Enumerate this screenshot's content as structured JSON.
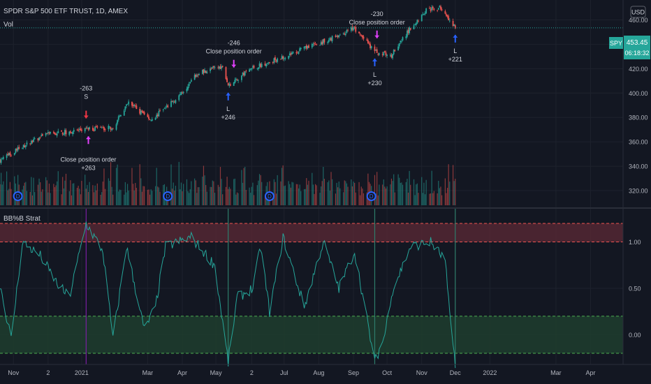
{
  "header": {
    "symbol_title": "SPDR S&P 500 ETF TRUST, 1D, AMEX",
    "volume_label": "Vol",
    "currency": "USD"
  },
  "indicator": {
    "title": "BB%B Strat"
  },
  "price_badge": {
    "ticker": "SPY",
    "price": "453.45",
    "countdown": "06:18:32"
  },
  "colors": {
    "background": "#131722",
    "up": "#26a69a",
    "down": "#ef5350",
    "grid": "#1e222d",
    "text": "#b2b5be",
    "long_arrow": "#2962ff",
    "short_arrow": "#f23645",
    "close_arrow": "#e040fb",
    "upper_band": "#5c2a35",
    "lower_band": "#1f3d2e",
    "bb_line": "#26a69a",
    "badge": "#26a69a"
  },
  "axes": {
    "price_ticks": [
      "460.00",
      "440.00",
      "420.00",
      "400.00",
      "380.00",
      "360.00",
      "340.00",
      "320.00"
    ],
    "indicator_ticks": [
      "1.00",
      "0.50",
      "0.00"
    ],
    "time_ticks": [
      "Nov",
      "2",
      "2021",
      "Mar",
      "Apr",
      "May",
      "2",
      "Jul",
      "Aug",
      "Sep",
      "Oct",
      "Nov",
      "Dec",
      "2022",
      "Mar",
      "Apr"
    ]
  },
  "chart_data": [
    {
      "type": "candlestick",
      "title": "SPDR S&P 500 ETF TRUST, 1D, AMEX",
      "ylim": [
        308,
        474
      ],
      "x_range": [
        "2020-10-20",
        "2022-04-30"
      ],
      "anchors": [
        {
          "x": "2020-10-20",
          "y": 345
        },
        {
          "x": "2020-11-09",
          "y": 356
        },
        {
          "x": "2020-12-01",
          "y": 366
        },
        {
          "x": "2021-01-04",
          "y": 370
        },
        {
          "x": "2021-01-29",
          "y": 372
        },
        {
          "x": "2021-02-12",
          "y": 392
        },
        {
          "x": "2021-03-04",
          "y": 378
        },
        {
          "x": "2021-03-26",
          "y": 395
        },
        {
          "x": "2021-04-16",
          "y": 417
        },
        {
          "x": "2021-05-07",
          "y": 422
        },
        {
          "x": "2021-05-12",
          "y": 406
        },
        {
          "x": "2021-06-01",
          "y": 420
        },
        {
          "x": "2021-07-01",
          "y": 430
        },
        {
          "x": "2021-08-02",
          "y": 441
        },
        {
          "x": "2021-09-02",
          "y": 453
        },
        {
          "x": "2021-09-20",
          "y": 434
        },
        {
          "x": "2021-09-28",
          "y": 432
        },
        {
          "x": "2021-10-04",
          "y": 430
        },
        {
          "x": "2021-10-21",
          "y": 452
        },
        {
          "x": "2021-11-05",
          "y": 468
        },
        {
          "x": "2021-11-18",
          "y": 470
        },
        {
          "x": "2021-11-26",
          "y": 458
        },
        {
          "x": "2021-11-30",
          "y": 455
        },
        {
          "x": "2021-12-01",
          "y": 453.45
        }
      ],
      "last_price": 453.45
    },
    {
      "type": "bar",
      "title": "Vol",
      "note": "volume histogram; red bars on down days, green on up days"
    },
    {
      "type": "line",
      "title": "BB%B Strat",
      "ylim": [
        -0.32,
        1.32
      ],
      "bands": {
        "upper": [
          1.0,
          1.2
        ],
        "lower": [
          -0.2,
          0.2
        ]
      },
      "anchors": [
        {
          "x": "2020-10-20",
          "y": 0.55
        },
        {
          "x": "2020-10-30",
          "y": -0.05
        },
        {
          "x": "2020-11-09",
          "y": 1.0
        },
        {
          "x": "2020-11-25",
          "y": 0.85
        },
        {
          "x": "2020-12-10",
          "y": 0.55
        },
        {
          "x": "2020-12-21",
          "y": 0.4
        },
        {
          "x": "2021-01-05",
          "y": 1.2
        },
        {
          "x": "2021-01-20",
          "y": 0.9
        },
        {
          "x": "2021-01-29",
          "y": -0.05
        },
        {
          "x": "2021-02-10",
          "y": 0.95
        },
        {
          "x": "2021-02-26",
          "y": 0.05
        },
        {
          "x": "2021-03-08",
          "y": 0.3
        },
        {
          "x": "2021-03-17",
          "y": 0.95
        },
        {
          "x": "2021-04-09",
          "y": 1.05
        },
        {
          "x": "2021-04-30",
          "y": 0.75
        },
        {
          "x": "2021-05-12",
          "y": -0.3
        },
        {
          "x": "2021-05-20",
          "y": 0.4
        },
        {
          "x": "2021-06-03",
          "y": 0.5
        },
        {
          "x": "2021-06-10",
          "y": 0.95
        },
        {
          "x": "2021-06-18",
          "y": 0.25
        },
        {
          "x": "2021-06-30",
          "y": 1.05
        },
        {
          "x": "2021-07-19",
          "y": 0.3
        },
        {
          "x": "2021-08-05",
          "y": 1.0
        },
        {
          "x": "2021-08-19",
          "y": 0.5
        },
        {
          "x": "2021-09-02",
          "y": 0.9
        },
        {
          "x": "2021-09-20",
          "y": -0.3
        },
        {
          "x": "2021-09-29",
          "y": 0.0
        },
        {
          "x": "2021-10-05",
          "y": 0.45
        },
        {
          "x": "2021-10-22",
          "y": 0.95
        },
        {
          "x": "2021-11-09",
          "y": 1.0
        },
        {
          "x": "2021-11-22",
          "y": 0.8
        },
        {
          "x": "2021-11-26",
          "y": 0.2
        },
        {
          "x": "2021-12-01",
          "y": -0.3
        }
      ]
    }
  ],
  "signals": [
    {
      "kind": "short",
      "x": "2021-01-05",
      "price_text": "-263",
      "letter": "S",
      "lines": [
        "-263",
        "S"
      ]
    },
    {
      "kind": "close_up",
      "x": "2021-01-07",
      "lines": [
        "Close position order",
        "+263"
      ]
    },
    {
      "kind": "close_down",
      "x": "2021-05-17",
      "lines": [
        "-246",
        "Close position order"
      ]
    },
    {
      "kind": "long",
      "x": "2021-05-12",
      "lines": [
        "L",
        "+246"
      ]
    },
    {
      "kind": "close_down",
      "x": "2021-09-22",
      "lines": [
        "-230",
        "Close position order"
      ]
    },
    {
      "kind": "long",
      "x": "2021-09-20",
      "lines": [
        "L",
        "+230"
      ]
    },
    {
      "kind": "long",
      "x": "2021-12-01",
      "lines": [
        "L",
        "+221"
      ]
    }
  ],
  "markers": [
    {
      "x": "2020-11-05",
      "label": "D"
    },
    {
      "x": "2021-03-19",
      "label": "D"
    },
    {
      "x": "2021-06-18",
      "label": "D"
    },
    {
      "x": "2021-09-17",
      "label": "D"
    }
  ]
}
